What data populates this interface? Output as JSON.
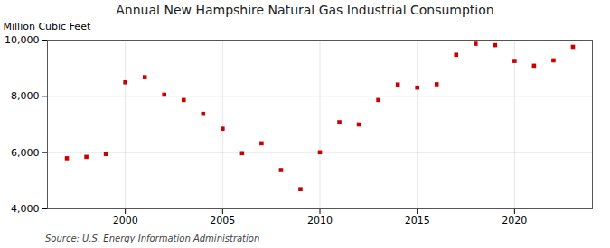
{
  "chart_data": {
    "type": "scatter",
    "title": "Annual New Hampshire Natural Gas Industrial Consumption",
    "ylabel": "Million Cubic Feet",
    "source": "Source: U.S. Energy Information Administration",
    "x": [
      1997,
      1998,
      1999,
      2000,
      2001,
      2002,
      2003,
      2004,
      2005,
      2006,
      2007,
      2008,
      2009,
      2010,
      2011,
      2012,
      2013,
      2014,
      2015,
      2016,
      2017,
      2018,
      2019,
      2020,
      2021,
      2022,
      2023
    ],
    "values": [
      5800,
      5850,
      5950,
      8500,
      8680,
      8060,
      7870,
      7380,
      6850,
      5980,
      6330,
      5380,
      4700,
      6010,
      7080,
      7000,
      7870,
      8420,
      8310,
      8430,
      9480,
      9870,
      9820,
      9260,
      9090,
      9280,
      9760
    ],
    "color": "#cc0000",
    "marker": "square",
    "xlim": [
      1996,
      2024
    ],
    "xticks": [
      2000,
      2005,
      2010,
      2015,
      2020
    ],
    "ylim": [
      4000,
      10000
    ],
    "yticks": [
      {
        "value": 4000,
        "label": "4,000"
      },
      {
        "value": 6000,
        "label": "6,000"
      },
      {
        "value": 8000,
        "label": "8,000"
      },
      {
        "value": 10000,
        "label": "10,000"
      }
    ],
    "grid": true
  }
}
